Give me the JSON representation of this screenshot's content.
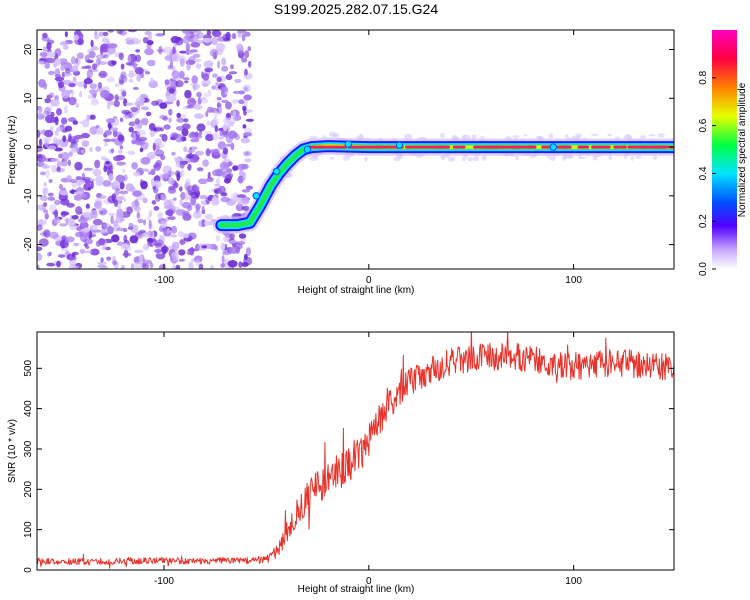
{
  "title": "S199.2025.282.07.15.G24",
  "colors": {
    "snr_line": "#e8322a",
    "ridge_low": "#1a1aff",
    "ridge_high": "#ff1f4f",
    "noise": "#9b59e0",
    "axis": "#000000"
  },
  "chart_data": [
    {
      "type": "heatmap",
      "name": "spectrogram",
      "xlabel": "Height of straight line (km)",
      "ylabel": "Frequency (Hz)",
      "xlim": [
        -162,
        149
      ],
      "ylim": [
        -25,
        24
      ],
      "xticks": [
        -100,
        0,
        100
      ],
      "xtick_labels": [
        "-100",
        "0",
        "100"
      ],
      "yticks": [
        -20,
        -10,
        0,
        10,
        20
      ],
      "ytick_labels": [
        "-20",
        "-10",
        "0",
        "10",
        "20"
      ],
      "noise_region_x": [
        -162,
        -58
      ],
      "ridge": {
        "x": [
          -72,
          -64,
          -58,
          -53,
          -48,
          -44,
          -40,
          -36,
          -32,
          -28,
          -20,
          0,
          50,
          100,
          149
        ],
        "y": [
          -16,
          -16,
          -15.5,
          -12,
          -8,
          -5.5,
          -3.5,
          -1.8,
          -0.5,
          0,
          0.2,
          0,
          0,
          0,
          0
        ]
      },
      "colorbar": {
        "label": "Normalized spectral amplitude",
        "range": [
          0.0,
          1.0
        ],
        "ticks": [
          0.0,
          0.2,
          0.4,
          0.6,
          0.8
        ],
        "tick_labels": [
          "0.0",
          "0.2",
          "0.4",
          "0.6",
          "0.8"
        ],
        "colormap": [
          "#ffffff",
          "#c8a8ff",
          "#5000ff",
          "#0050ff",
          "#00e5ff",
          "#00ff40",
          "#e8ff00",
          "#ff8000",
          "#ff0040",
          "#ff00c0"
        ]
      }
    },
    {
      "type": "line",
      "name": "snr",
      "xlabel": "Height of straight line (km)",
      "ylabel": "SNR (10 * v/v)",
      "xlim": [
        -162,
        149
      ],
      "ylim": [
        0,
        590
      ],
      "xticks": [
        -100,
        0,
        100
      ],
      "xtick_labels": [
        "-100",
        "0",
        "100"
      ],
      "yticks": [
        0,
        100,
        200,
        300,
        400,
        500
      ],
      "ytick_labels": [
        "0",
        "100",
        "200",
        "300",
        "400",
        "500"
      ],
      "series": [
        {
          "name": "SNR",
          "x": [
            -162,
            -140,
            -120,
            -100,
            -80,
            -60,
            -50,
            -45,
            -40,
            -35,
            -30,
            -25,
            -20,
            -15,
            -10,
            -5,
            0,
            5,
            10,
            15,
            20,
            25,
            30,
            35,
            40,
            50,
            60,
            70,
            80,
            90,
            100,
            110,
            120,
            130,
            140,
            149
          ],
          "y": [
            22,
            20,
            22,
            24,
            22,
            23,
            26,
            45,
            90,
            140,
            180,
            205,
            225,
            245,
            255,
            280,
            320,
            370,
            410,
            440,
            465,
            480,
            495,
            505,
            515,
            525,
            530,
            528,
            525,
            515,
            505,
            510,
            515,
            510,
            505,
            500
          ],
          "noise_amplitude": [
            8,
            8,
            8,
            8,
            8,
            8,
            10,
            15,
            30,
            35,
            40,
            45,
            45,
            45,
            45,
            45,
            40,
            40,
            35,
            35,
            35,
            35,
            35,
            35,
            35,
            35,
            35,
            35,
            35,
            35,
            35,
            35,
            35,
            35,
            35,
            35
          ]
        }
      ]
    }
  ]
}
